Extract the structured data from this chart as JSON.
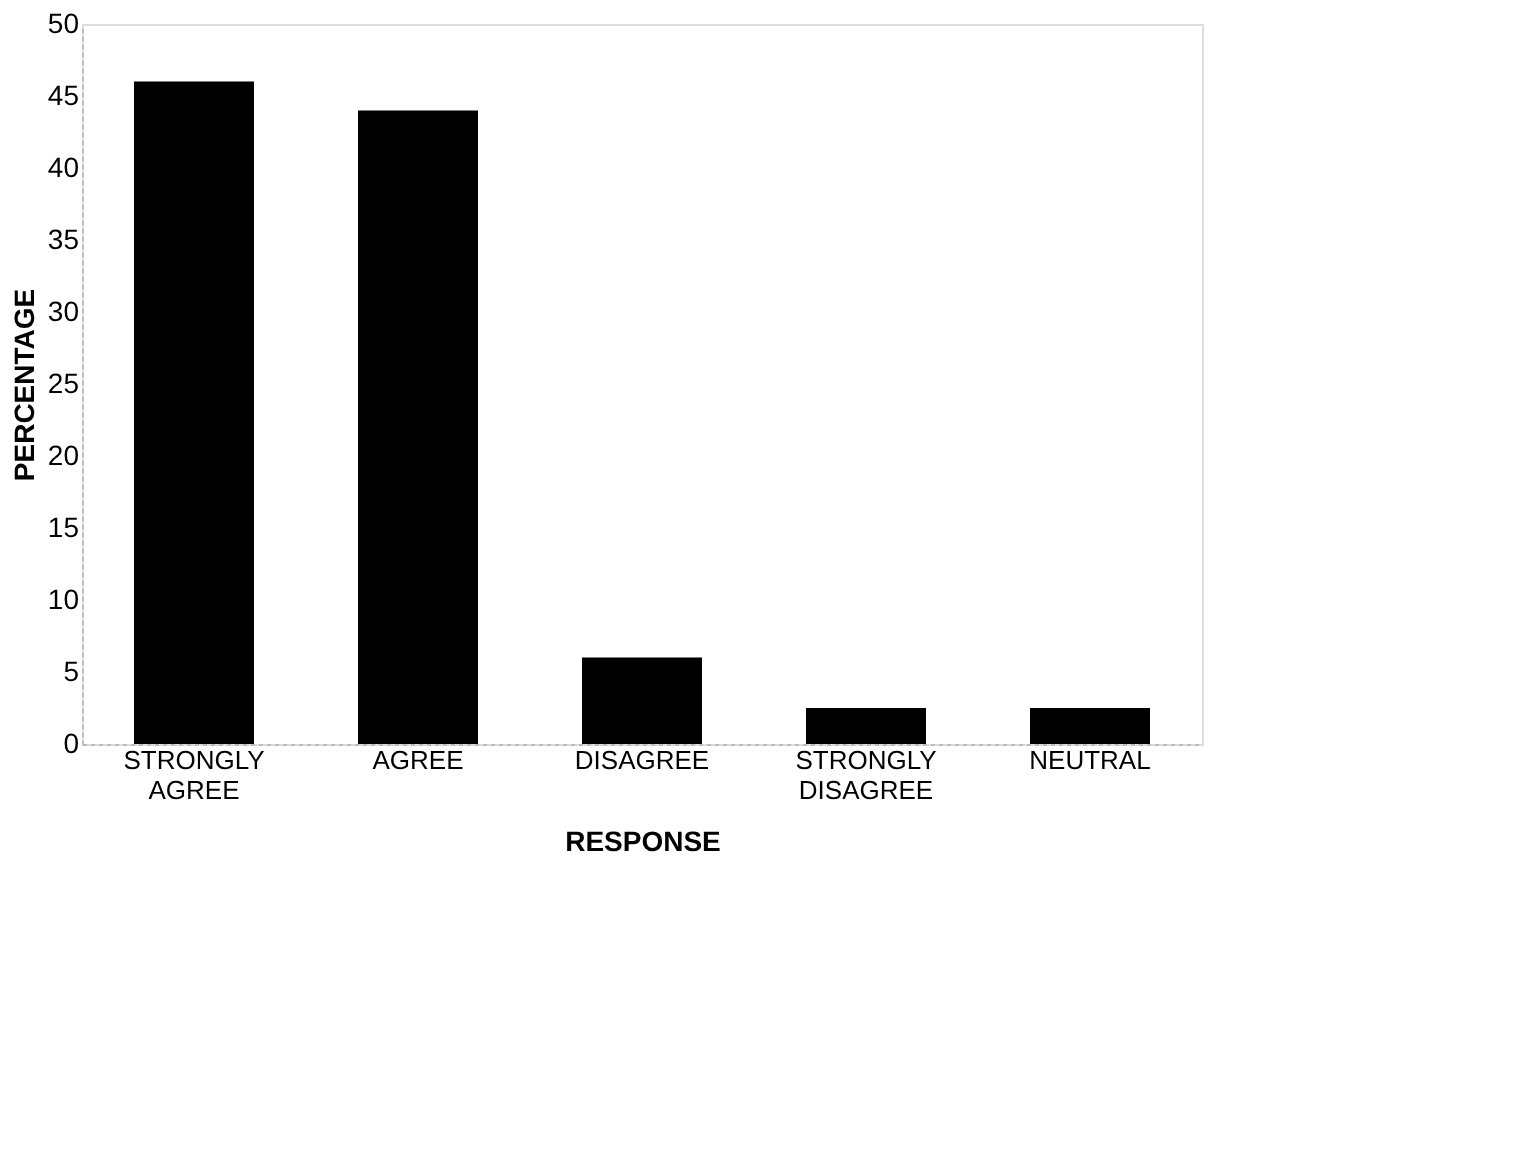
{
  "chart_data": {
    "type": "bar",
    "xlabel": "RESPONSE",
    "ylabel": "PERCENTAGE",
    "categories": [
      "STRONGLY AGREE",
      "AGREE",
      "DISAGREE",
      "STRONGLY DISAGREE",
      "NEUTRAL"
    ],
    "values": [
      46,
      44,
      6,
      2.5,
      2.5
    ],
    "color": "#000000",
    "ylim": [
      0,
      50
    ],
    "yticks": [
      0,
      5,
      10,
      15,
      20,
      25,
      30,
      35,
      40,
      45,
      50
    ],
    "grid": false
  }
}
